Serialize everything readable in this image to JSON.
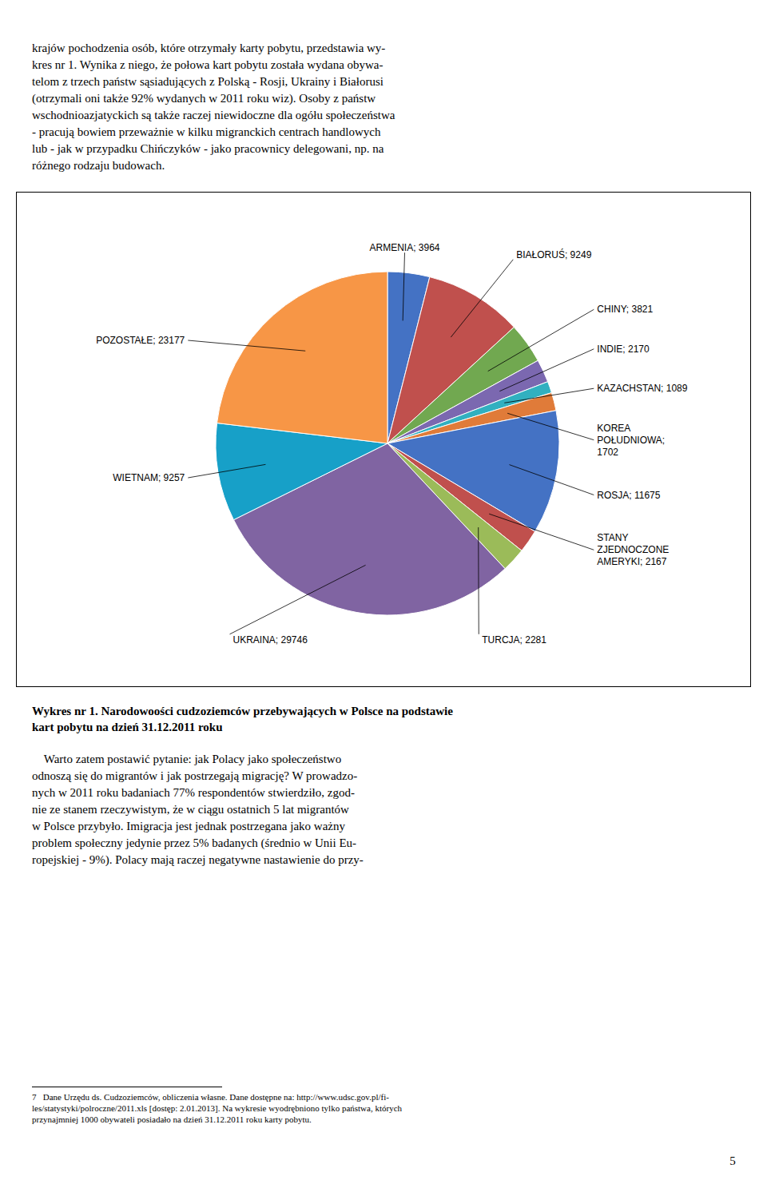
{
  "chart_data": {
    "type": "pie",
    "title": "Wykres nr 1. Narodowoości cudzoziemców przebywających w Polsce na podstawie\nkart pobytu na dzień 31.12.2011 roku",
    "values": [
      3964,
      9249,
      3821,
      2170,
      1089,
      1702,
      11675,
      2167,
      2281,
      29746,
      9257,
      23177
    ],
    "value_labels": [
      "ARMENIA; 3964",
      "BIAŁORUŚ; 9249",
      "CHINY; 3821",
      "INDIE; 2170",
      "KAZACHSTAN; 1089",
      "KOREA\nPOŁUDNIOWA;\n1702",
      "ROSJA; 11675",
      "STANY\nZJEDNOCZONE\nAMERYKI; 2167",
      "TURCJA; 2281",
      "UKRAINA; 29746",
      "WIETNAM; 9257",
      "POZOSTAŁE; 23177"
    ],
    "colors": [
      "#4472C4",
      "#C0504D",
      "#71A850",
      "#7B68B0",
      "#31B0C0",
      "#E07B39",
      "#4472C4",
      "#C0504D",
      "#9BBB59",
      "#8064A2",
      "#17A0C8",
      "#F79646"
    ],
    "annotations": [
      "krajów pochodzenia osób, które otrzymały karty pobytu, przedstawia wy-\nkres nr 1. Wynika z niego, że połowa kart pobytu została wydana obywa-\ntelom z trzech państw sąsiadujących z Polską - Rosji, Ukrainy i Białorusi\n(otrzymali oni także 92% wydanych w 2011 roku wiz). Osoby z państw\nwschodnioazjatyckich są także raczej niewidoczne dla ogółu społeczeństwa\n- pracują bowiem przeważnie w kilku migranckich centrach handlowych\nlub - jak w przypadku Chińczyków - jako pracownicy delegowani, np. na\nróżnego rodzaju budowach.",
      "    Warto zatem postawić pytanie: jak Polacy jako społeczeństwo\nodnoszą się do migrantów i jak postrzegają migrację? W prowadzo-\nnych w 2011 roku badaniach 77% respondentów stwierdziło, zgod-\nnie ze stanem rzeczywistym, że w ciągu ostatnich 5 lat migrantów\nw Polsce przybyło. Imigracja jest jednak postrzegana jako ważny\nproblem społeczny jedynie przez 5% badanych (średnio w Unii Eu-\nropejskiej - 9%). Polacy mają raczej negatywne nastawienie do przy-",
      "7   Dane Urzędu ds. Cudzoziemców, obliczenia własne. Dane dostępne na: http://www.udsc.gov.pl/fi-\nles/statystyki/polroczne/2011.xls [dostęp: 2.01.2013]. Na wykresie wyodrębniono tylko państwa, których\nprzynajmniej 1000 obywateli posiadało na dzień 31.12.2011 roku karty pobytu.",
      "5"
    ]
  }
}
